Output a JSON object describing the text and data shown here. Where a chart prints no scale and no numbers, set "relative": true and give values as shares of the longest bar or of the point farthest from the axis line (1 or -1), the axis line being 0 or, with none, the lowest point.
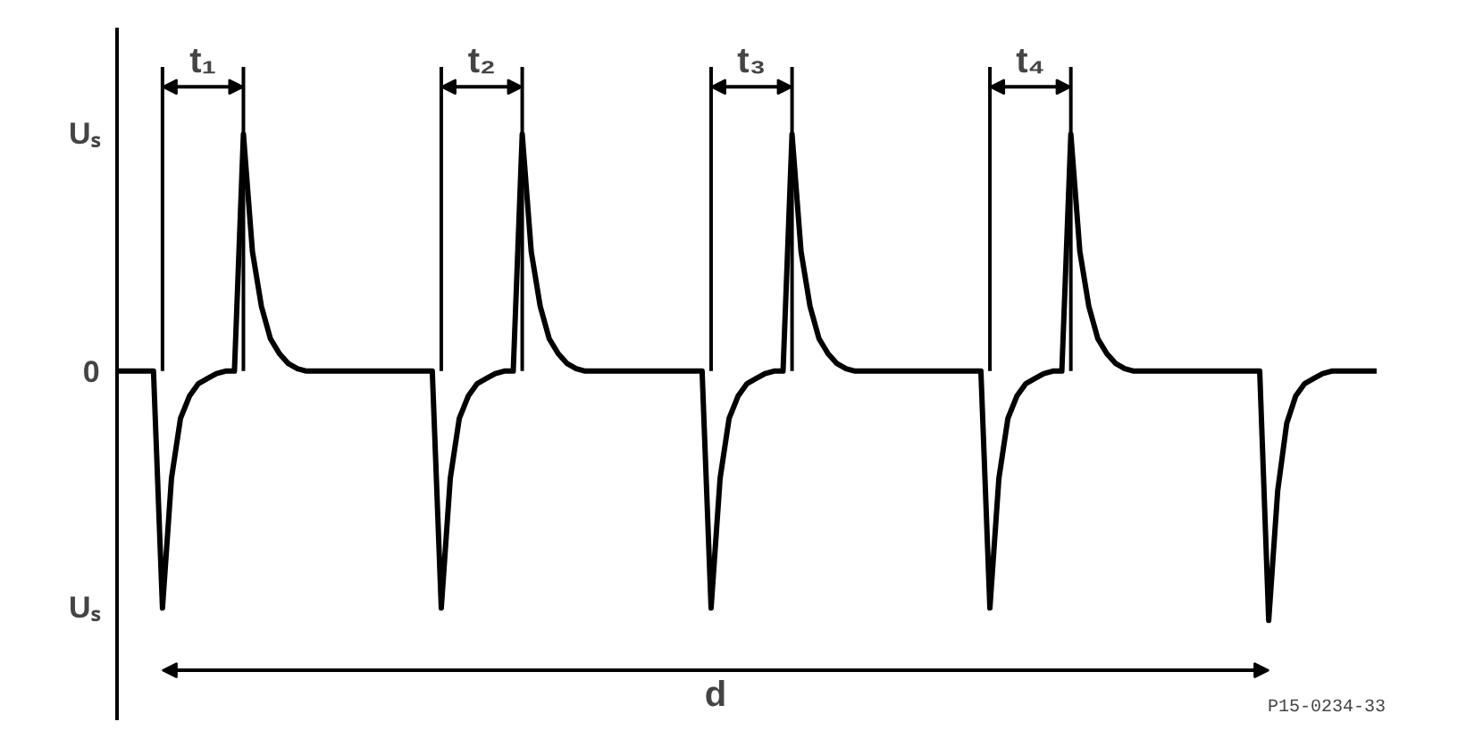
{
  "chart_data": {
    "type": "line",
    "categories": [
      null,
      null,
      null,
      null,
      null,
      null,
      null,
      null,
      null,
      null,
      null,
      null,
      null,
      null,
      null,
      null,
      null,
      null,
      null,
      null,
      null,
      null,
      null,
      null,
      null,
      null,
      null,
      null,
      null,
      null,
      null,
      null,
      null,
      null,
      null,
      null,
      null,
      null,
      null,
      null,
      null,
      null,
      null,
      null,
      null,
      null,
      null,
      null,
      null,
      null,
      null,
      null,
      null,
      null,
      null,
      null,
      null,
      null,
      null,
      null,
      null,
      null,
      null,
      null,
      null,
      null,
      null,
      null,
      null,
      null,
      null,
      null,
      null,
      null,
      null,
      null,
      null,
      null,
      null,
      null,
      null,
      null,
      null,
      null,
      null,
      null,
      null,
      null,
      null,
      null,
      null,
      null,
      null,
      null,
      null,
      null,
      null,
      null,
      null,
      null,
      null,
      null,
      null,
      null,
      null,
      null,
      null,
      null,
      null,
      null,
      null,
      null,
      null,
      null,
      null,
      null,
      null,
      null,
      null,
      null,
      null,
      null,
      null,
      null,
      null,
      null,
      null,
      null,
      null,
      null,
      null,
      null,
      null,
      null,
      null,
      null,
      null,
      null,
      null,
      null,
      null
    ],
    "series": [
      {
        "color": "#000000",
        "values": [
          0,
          0,
          0,
          0,
          0,
          -0.95,
          -0.43,
          -0.19,
          -0.1,
          -0.05,
          -0.03,
          -0.01,
          0,
          0,
          0.95,
          0.48,
          0.26,
          0.13,
          0.07,
          0.03,
          0.01,
          0,
          0,
          0,
          0,
          0,
          0,
          0,
          0,
          0,
          0,
          0,
          0,
          0,
          0,
          0,
          -0.95,
          -0.43,
          -0.19,
          -0.1,
          -0.05,
          -0.03,
          -0.01,
          0,
          0,
          0.95,
          0.48,
          0.26,
          0.13,
          0.07,
          0.03,
          0.01,
          0,
          0,
          0,
          0,
          0,
          0,
          0,
          0,
          0,
          0,
          0,
          0,
          0,
          0,
          -0.95,
          -0.43,
          -0.19,
          -0.1,
          -0.05,
          -0.03,
          -0.01,
          0,
          0,
          0.95,
          0.48,
          0.26,
          0.13,
          0.07,
          0.03,
          0.01,
          0,
          0,
          0,
          0,
          0,
          0,
          0,
          0,
          0,
          0,
          0,
          0,
          0,
          0,
          0,
          -0.95,
          -0.43,
          -0.19,
          -0.1,
          -0.05,
          -0.03,
          -0.01,
          0,
          0,
          0.95,
          0.48,
          0.26,
          0.13,
          0.07,
          0.03,
          0.01,
          0,
          0,
          0,
          0,
          0,
          0,
          0,
          0,
          0,
          0,
          0,
          0,
          0,
          0,
          0,
          -1,
          -0.48,
          -0.21,
          -0.1,
          -0.05,
          -0.03,
          -0.01,
          0,
          0,
          0,
          0,
          0,
          0
        ]
      }
    ],
    "relative": true,
    "tick_labels": false,
    "marker": "none",
    "line_style": "solid",
    "annotations": [
      "t₁",
      "t₂",
      "t₃",
      "t₄",
      "d",
      "Uₛ",
      "0",
      "Uₛ",
      "P15-0234-33"
    ]
  }
}
